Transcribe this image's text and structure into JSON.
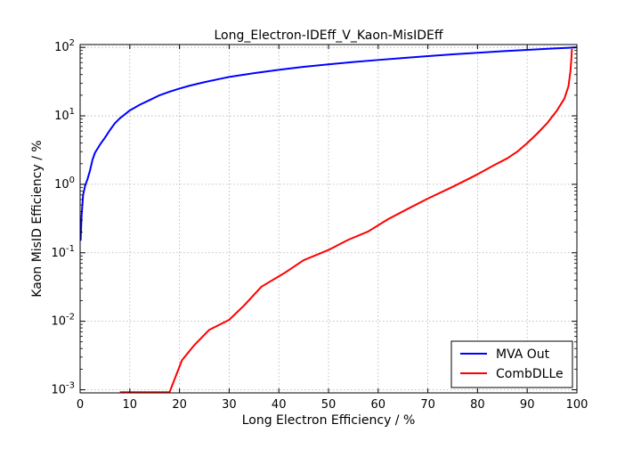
{
  "chart_data": {
    "type": "line",
    "title": "Long_Electron-IDEff_V_Kaon-MisIDEff",
    "xlabel": "Long Electron Efficiency / %",
    "ylabel": "Kaon MisID Efficiency / %",
    "xlim": [
      0,
      100
    ],
    "ylim": [
      0.0009,
      110
    ],
    "yscale": "log",
    "x_ticks": [
      "0",
      "10",
      "20",
      "30",
      "40",
      "50",
      "60",
      "70",
      "80",
      "90",
      "100"
    ],
    "y_ticks": [
      {
        "value": 0.001,
        "base": "10",
        "exp": "-3"
      },
      {
        "value": 0.01,
        "base": "10",
        "exp": "-2"
      },
      {
        "value": 0.1,
        "base": "10",
        "exp": "-1"
      },
      {
        "value": 1,
        "base": "10",
        "exp": "0"
      },
      {
        "value": 10,
        "base": "10",
        "exp": "1"
      },
      {
        "value": 100,
        "base": "10",
        "exp": "2"
      }
    ],
    "grid": true,
    "legend_position": "bottom-right",
    "series": [
      {
        "name": "MVA Out",
        "color": "#0000ff",
        "points": [
          [
            0.1,
            0.15
          ],
          [
            0.3,
            0.35
          ],
          [
            0.6,
            0.7
          ],
          [
            1.0,
            0.95
          ],
          [
            1.5,
            1.2
          ],
          [
            2.0,
            1.6
          ],
          [
            2.5,
            2.3
          ],
          [
            3.0,
            2.9
          ],
          [
            4.0,
            3.8
          ],
          [
            5.0,
            4.8
          ],
          [
            6.0,
            6.2
          ],
          [
            7.0,
            7.8
          ],
          [
            8.0,
            9.2
          ],
          [
            9.0,
            10.5
          ],
          [
            10.0,
            12.0
          ],
          [
            12.0,
            14.5
          ],
          [
            14.0,
            17.0
          ],
          [
            16.0,
            20.0
          ],
          [
            18.0,
            22.5
          ],
          [
            20.0,
            25.0
          ],
          [
            22.0,
            27.5
          ],
          [
            25.0,
            31.0
          ],
          [
            28.0,
            34.5
          ],
          [
            30.0,
            37.0
          ],
          [
            35.0,
            42.0
          ],
          [
            40.0,
            47.0
          ],
          [
            45.0,
            52.0
          ],
          [
            50.0,
            56.5
          ],
          [
            55.0,
            61.0
          ],
          [
            60.0,
            65.5
          ],
          [
            65.0,
            70.0
          ],
          [
            70.0,
            74.5
          ],
          [
            75.0,
            79.0
          ],
          [
            80.0,
            83.5
          ],
          [
            85.0,
            88.0
          ],
          [
            90.0,
            92.0
          ],
          [
            95.0,
            96.0
          ],
          [
            98.0,
            98.5
          ],
          [
            100.0,
            100.0
          ]
        ]
      },
      {
        "name": "CombDLLe",
        "color": "#ff0000",
        "points": [
          [
            8.0,
            0.00092
          ],
          [
            18.0,
            0.00092
          ],
          [
            20.5,
            0.0027
          ],
          [
            23.0,
            0.0045
          ],
          [
            26.0,
            0.0075
          ],
          [
            30.0,
            0.0105
          ],
          [
            33.0,
            0.017
          ],
          [
            36.5,
            0.032
          ],
          [
            41.0,
            0.05
          ],
          [
            45.0,
            0.078
          ],
          [
            50.0,
            0.11
          ],
          [
            54.0,
            0.155
          ],
          [
            58.0,
            0.205
          ],
          [
            62.0,
            0.31
          ],
          [
            66.0,
            0.44
          ],
          [
            70.0,
            0.62
          ],
          [
            75.0,
            0.92
          ],
          [
            80.0,
            1.4
          ],
          [
            83.0,
            1.85
          ],
          [
            86.0,
            2.4
          ],
          [
            88.0,
            3.0
          ],
          [
            90.0,
            4.0
          ],
          [
            92.0,
            5.5
          ],
          [
            94.0,
            7.8
          ],
          [
            96.0,
            12.0
          ],
          [
            97.5,
            18.0
          ],
          [
            98.3,
            27.0
          ],
          [
            98.7,
            45.0
          ],
          [
            98.9,
            70.0
          ],
          [
            99.0,
            95.0
          ]
        ]
      }
    ]
  }
}
